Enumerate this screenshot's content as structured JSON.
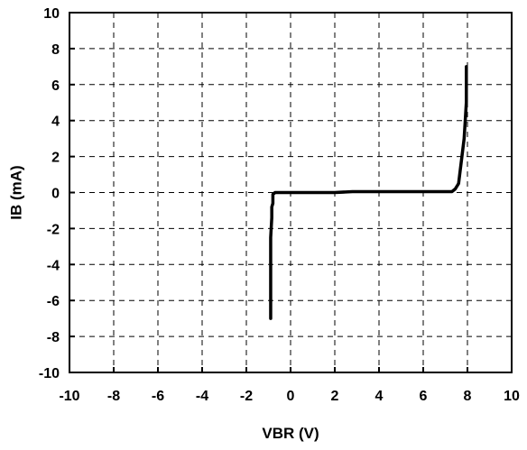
{
  "chart_data": {
    "type": "line",
    "title": "",
    "xlabel": "VBR (V)",
    "ylabel": "IB (mA)",
    "xlim": [
      -10,
      10
    ],
    "ylim": [
      -10,
      10
    ],
    "xticks": [
      -10,
      -8,
      -6,
      -4,
      -2,
      0,
      2,
      4,
      6,
      8,
      10
    ],
    "yticks": [
      -10,
      -8,
      -6,
      -4,
      -2,
      0,
      2,
      4,
      6,
      8,
      10
    ],
    "xtick_labels": [
      "-10",
      "-8",
      "-6",
      "-4",
      "-2",
      "0",
      "2",
      "4",
      "6",
      "8",
      "10"
    ],
    "ytick_labels": [
      "-10",
      "-8",
      "-6",
      "-4",
      "-2",
      "0",
      "2",
      "4",
      "6",
      "8",
      "10"
    ],
    "grid": true,
    "grid_style": "dashed",
    "series": [
      {
        "color": "#000000",
        "x": [
          -0.9,
          -0.9,
          -0.85,
          -0.85,
          -0.8,
          -0.8,
          -0.7,
          -0.5,
          0,
          1,
          2,
          2.8,
          4,
          5,
          6,
          6.8,
          7.3,
          7.45,
          7.6,
          7.65,
          7.75,
          7.85,
          7.9,
          7.95,
          7.95
        ],
        "y": [
          -7,
          -2.5,
          -1.4,
          -0.8,
          -0.6,
          -0.1,
          0,
          0,
          0,
          0,
          0,
          0.05,
          0.05,
          0.05,
          0.05,
          0.05,
          0.05,
          0.2,
          0.5,
          1,
          2,
          3,
          4,
          5,
          7
        ]
      }
    ]
  }
}
